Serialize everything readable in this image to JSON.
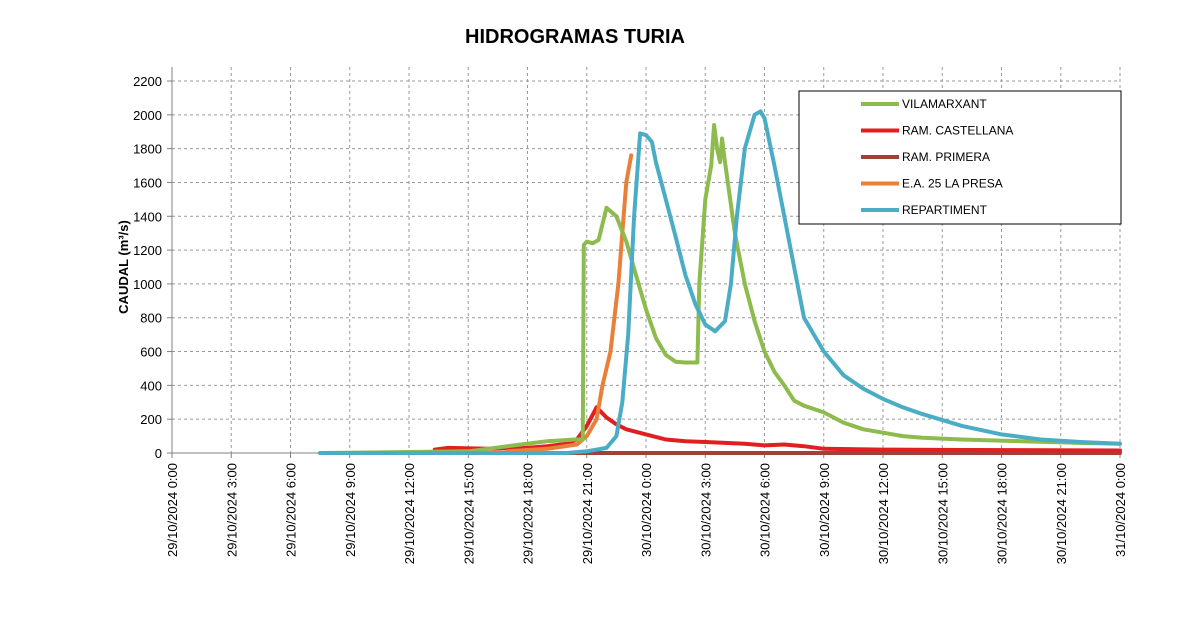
{
  "chart_data": {
    "type": "line",
    "title": "HIDROGRAMAS  TURIA",
    "ylabel": "CAUDAL  (m³/s)",
    "xlabel": "",
    "ylim": [
      0,
      2200
    ],
    "yticks": [
      0,
      200,
      400,
      600,
      800,
      1000,
      1200,
      1400,
      1600,
      1800,
      2000,
      2200
    ],
    "xlim_hours": [
      0,
      48
    ],
    "x_unit": "hours from 29/10/2024 0:00",
    "xticks": [
      {
        "h": 0,
        "label": "29/10/2024 0:00"
      },
      {
        "h": 3,
        "label": "29/10/2024 3:00"
      },
      {
        "h": 6,
        "label": "29/10/2024 6:00"
      },
      {
        "h": 9,
        "label": "29/10/2024 9:00"
      },
      {
        "h": 12,
        "label": "29/10/2024 12:00"
      },
      {
        "h": 15,
        "label": "29/10/2024 15:00"
      },
      {
        "h": 18,
        "label": "29/10/2024 18:00"
      },
      {
        "h": 21,
        "label": "29/10/2024 21:00"
      },
      {
        "h": 24,
        "label": "30/10/2024 0:00"
      },
      {
        "h": 27,
        "label": "30/10/2024 3:00"
      },
      {
        "h": 30,
        "label": "30/10/2024 6:00"
      },
      {
        "h": 33,
        "label": "30/10/2024 9:00"
      },
      {
        "h": 36,
        "label": "30/10/2024 12:00"
      },
      {
        "h": 39,
        "label": "30/10/2024 15:00"
      },
      {
        "h": 42,
        "label": "30/10/2024 18:00"
      },
      {
        "h": 45,
        "label": "30/10/2024 21:00"
      },
      {
        "h": 48,
        "label": "31/10/2024 0:00"
      }
    ],
    "grid": true,
    "legend_position": "top-right",
    "series": [
      {
        "name": "VILAMARXANT",
        "color": "#8DBB4D",
        "points": [
          [
            7.5,
            0
          ],
          [
            10,
            3
          ],
          [
            15,
            10
          ],
          [
            17,
            40
          ],
          [
            19,
            70
          ],
          [
            20.4,
            80
          ],
          [
            20.8,
            80
          ],
          [
            20.85,
            1230
          ],
          [
            21,
            1250
          ],
          [
            21.3,
            1240
          ],
          [
            21.6,
            1260
          ],
          [
            22,
            1450
          ],
          [
            22.5,
            1400
          ],
          [
            23,
            1250
          ],
          [
            23.5,
            1050
          ],
          [
            24,
            850
          ],
          [
            24.5,
            680
          ],
          [
            25,
            580
          ],
          [
            25.5,
            540
          ],
          [
            26,
            535
          ],
          [
            26.6,
            535
          ],
          [
            26.7,
            1000
          ],
          [
            27,
            1500
          ],
          [
            27.3,
            1700
          ],
          [
            27.45,
            1940
          ],
          [
            27.6,
            1800
          ],
          [
            27.75,
            1720
          ],
          [
            27.85,
            1860
          ],
          [
            28,
            1720
          ],
          [
            28.2,
            1550
          ],
          [
            28.5,
            1300
          ],
          [
            29,
            1000
          ],
          [
            29.5,
            780
          ],
          [
            30,
            600
          ],
          [
            30.5,
            480
          ],
          [
            31,
            400
          ],
          [
            31.5,
            310
          ],
          [
            32,
            280
          ],
          [
            33,
            240
          ],
          [
            34,
            180
          ],
          [
            35,
            140
          ],
          [
            36,
            120
          ],
          [
            37,
            100
          ],
          [
            38,
            90
          ],
          [
            40,
            80
          ],
          [
            43,
            70
          ],
          [
            46,
            60
          ],
          [
            48,
            55
          ]
        ]
      },
      {
        "name": "RAM. CASTELLANA",
        "color": "#E02020",
        "points": [
          [
            13.3,
            20
          ],
          [
            14,
            30
          ],
          [
            16,
            25
          ],
          [
            18,
            30
          ],
          [
            19,
            40
          ],
          [
            20,
            55
          ],
          [
            20.5,
            80
          ],
          [
            21,
            160
          ],
          [
            21.5,
            270
          ],
          [
            22,
            210
          ],
          [
            22.5,
            170
          ],
          [
            23,
            140
          ],
          [
            24,
            110
          ],
          [
            25,
            80
          ],
          [
            26,
            70
          ],
          [
            27,
            65
          ],
          [
            28,
            60
          ],
          [
            29,
            55
          ],
          [
            30,
            45
          ],
          [
            31,
            50
          ],
          [
            32,
            40
          ],
          [
            33,
            25
          ],
          [
            36,
            20
          ],
          [
            40,
            18
          ],
          [
            48,
            15
          ]
        ]
      },
      {
        "name": "RAM. PRIMERA",
        "color": "#A0403A",
        "points": [
          [
            7.5,
            0
          ],
          [
            48,
            0
          ]
        ]
      },
      {
        "name": "E.A. 25 LA PRESA",
        "color": "#E8803A",
        "points": [
          [
            17,
            10
          ],
          [
            19,
            25
          ],
          [
            20.5,
            50
          ],
          [
            21,
            100
          ],
          [
            21.5,
            200
          ],
          [
            21.8,
            400
          ],
          [
            22.2,
            600
          ],
          [
            22.4,
            800
          ],
          [
            22.6,
            1000
          ],
          [
            22.8,
            1300
          ],
          [
            23,
            1600
          ],
          [
            23.25,
            1760
          ]
        ]
      },
      {
        "name": "REPARTIMENT",
        "color": "#4BACC6",
        "points": [
          [
            7.5,
            0
          ],
          [
            18,
            0
          ],
          [
            20,
            0
          ],
          [
            21,
            10
          ],
          [
            22,
            30
          ],
          [
            22.5,
            100
          ],
          [
            22.8,
            300
          ],
          [
            23.1,
            700
          ],
          [
            23.4,
            1400
          ],
          [
            23.7,
            1890
          ],
          [
            24,
            1880
          ],
          [
            24.3,
            1840
          ],
          [
            24.5,
            1720
          ],
          [
            25,
            1500
          ],
          [
            25.5,
            1280
          ],
          [
            26,
            1050
          ],
          [
            26.5,
            880
          ],
          [
            27,
            760
          ],
          [
            27.5,
            720
          ],
          [
            28,
            780
          ],
          [
            28.3,
            1000
          ],
          [
            28.6,
            1400
          ],
          [
            29,
            1800
          ],
          [
            29.5,
            2000
          ],
          [
            29.8,
            2020
          ],
          [
            30,
            1980
          ],
          [
            30.5,
            1700
          ],
          [
            31,
            1400
          ],
          [
            31.5,
            1100
          ],
          [
            32,
            800
          ],
          [
            33,
            600
          ],
          [
            34,
            460
          ],
          [
            35,
            380
          ],
          [
            36,
            320
          ],
          [
            37,
            270
          ],
          [
            38,
            230
          ],
          [
            40,
            160
          ],
          [
            42,
            110
          ],
          [
            44,
            80
          ],
          [
            46,
            65
          ],
          [
            48,
            55
          ]
        ]
      }
    ]
  }
}
